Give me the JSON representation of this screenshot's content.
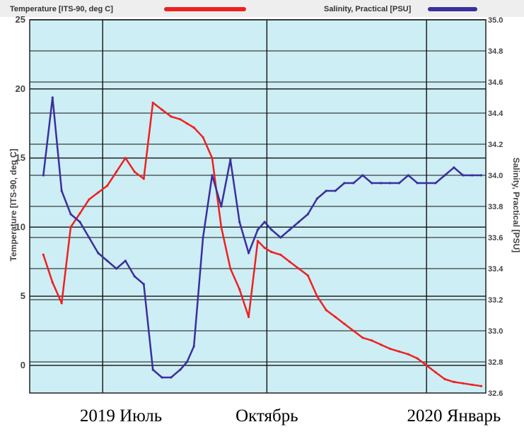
{
  "chart_data": {
    "type": "line",
    "legend": {
      "placement": "top",
      "temperature": "Temperature [ITS-90, deg C]",
      "salinity": "Salinity, Practical [PSU]"
    },
    "y_left": {
      "label": "Temperature [ITS-90, deg C]",
      "range": [
        -2,
        25
      ],
      "ticks": [
        "25",
        "20",
        "15",
        "10",
        "5",
        "0"
      ],
      "tick_values": [
        25,
        20,
        15,
        10,
        5,
        0
      ]
    },
    "y_right": {
      "label": "Salinity, Practical [PSU]",
      "range": [
        32.6,
        35.0
      ],
      "ticks": [
        "35.0",
        "34.8",
        "34.6",
        "34.4",
        "34.2",
        "34.0",
        "33.8",
        "33.6",
        "33.4",
        "33.2",
        "33.0",
        "32.8",
        "32.6"
      ],
      "tick_values": [
        35.0,
        34.8,
        34.6,
        34.4,
        34.2,
        34.0,
        33.8,
        33.6,
        33.4,
        33.2,
        33.0,
        32.8,
        32.6
      ]
    },
    "x_axis": {
      "labels": [
        "2019 Июль",
        "Октябрь",
        "2020 Январь"
      ],
      "label_positions": [
        0.2,
        0.52,
        0.93
      ]
    },
    "grid": true,
    "colors": {
      "temperature": "#ee2020",
      "salinity": "#3a2f9f",
      "plot_background": "#cdeef4",
      "grid": "#111111"
    },
    "series": [
      {
        "name": "Temperature [ITS-90, deg C]",
        "axis": "left",
        "x": [
          0.03,
          0.05,
          0.07,
          0.09,
          0.11,
          0.13,
          0.15,
          0.17,
          0.19,
          0.21,
          0.23,
          0.25,
          0.27,
          0.29,
          0.31,
          0.33,
          0.345,
          0.36,
          0.38,
          0.4,
          0.42,
          0.44,
          0.46,
          0.48,
          0.5,
          0.515,
          0.53,
          0.55,
          0.57,
          0.59,
          0.61,
          0.63,
          0.65,
          0.67,
          0.69,
          0.71,
          0.73,
          0.75,
          0.77,
          0.79,
          0.81,
          0.83,
          0.85,
          0.87,
          0.89,
          0.91,
          0.93,
          0.95,
          0.97,
          0.99
        ],
        "y": [
          8,
          6,
          4.5,
          10,
          11,
          12,
          12.5,
          13,
          14,
          15,
          14,
          13.5,
          19,
          18.5,
          18,
          17.8,
          17.5,
          17.2,
          16.5,
          15,
          10,
          7,
          5.5,
          3.5,
          9,
          8.5,
          8.2,
          8,
          7.5,
          7,
          6.5,
          5,
          4,
          3.5,
          3,
          2.5,
          2,
          1.8,
          1.5,
          1.2,
          1,
          0.8,
          0.5,
          0,
          -0.5,
          -1,
          -1.2,
          -1.3,
          -1.4,
          -1.5
        ]
      },
      {
        "name": "Salinity, Practical [PSU]",
        "axis": "right",
        "x": [
          0.03,
          0.05,
          0.07,
          0.09,
          0.11,
          0.13,
          0.15,
          0.17,
          0.19,
          0.21,
          0.23,
          0.25,
          0.27,
          0.29,
          0.31,
          0.33,
          0.345,
          0.36,
          0.38,
          0.4,
          0.42,
          0.44,
          0.46,
          0.48,
          0.5,
          0.515,
          0.53,
          0.55,
          0.57,
          0.59,
          0.61,
          0.63,
          0.65,
          0.67,
          0.69,
          0.71,
          0.73,
          0.75,
          0.77,
          0.79,
          0.81,
          0.83,
          0.85,
          0.87,
          0.89,
          0.91,
          0.93,
          0.95,
          0.97,
          0.99
        ],
        "y": [
          34.0,
          34.5,
          33.9,
          33.75,
          33.7,
          33.6,
          33.5,
          33.45,
          33.4,
          33.45,
          33.35,
          33.3,
          32.75,
          32.7,
          32.7,
          32.75,
          32.8,
          32.9,
          33.6,
          34.0,
          33.8,
          34.1,
          33.7,
          33.5,
          33.65,
          33.7,
          33.65,
          33.6,
          33.65,
          33.7,
          33.75,
          33.85,
          33.9,
          33.9,
          33.95,
          33.95,
          34.0,
          33.95,
          33.95,
          33.95,
          33.95,
          34.0,
          33.95,
          33.95,
          33.95,
          34.0,
          34.05,
          34.0,
          34.0,
          34.0
        ]
      }
    ]
  }
}
